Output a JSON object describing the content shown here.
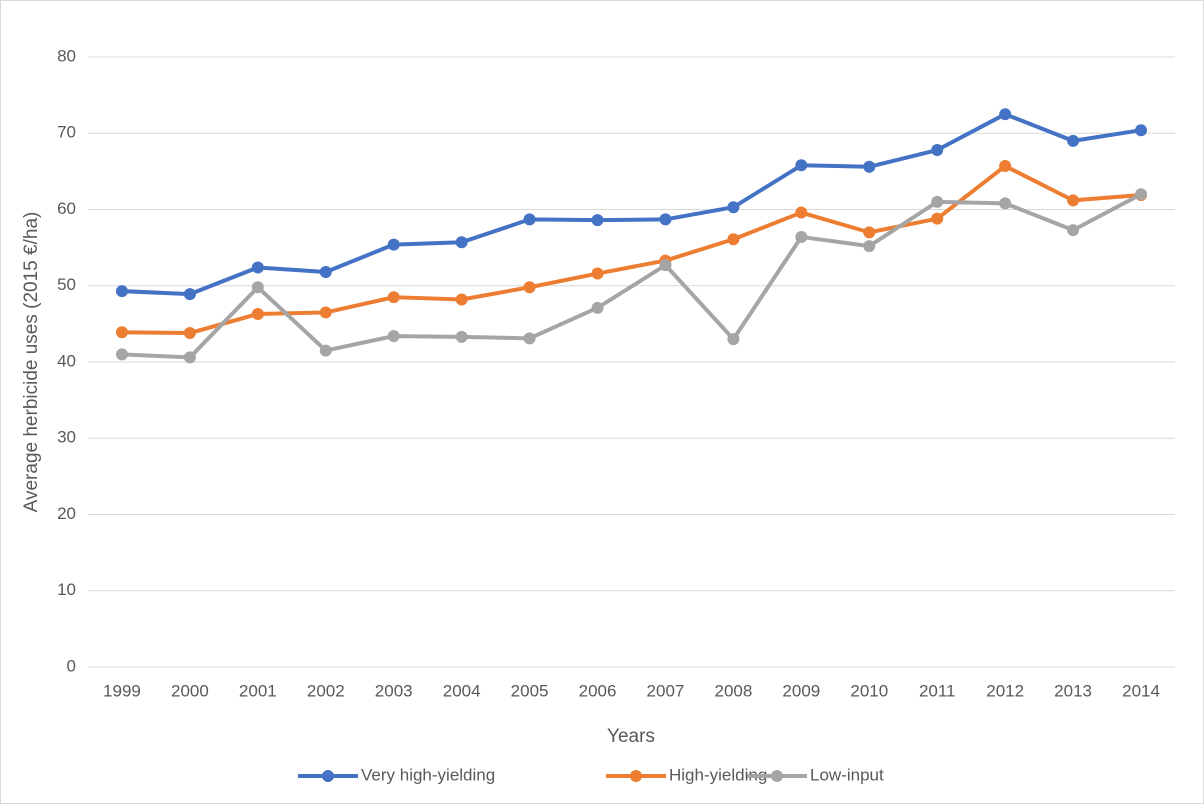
{
  "chart_data": {
    "type": "line",
    "x_label": "Years",
    "y_label": "Average herbicide uses (2015 €/ha)",
    "categories": [
      "1999",
      "2000",
      "2001",
      "2002",
      "2003",
      "2004",
      "2005",
      "2006",
      "2007",
      "2008",
      "2009",
      "2010",
      "2011",
      "2012",
      "2013",
      "2014"
    ],
    "series": [
      {
        "name": "Very high-yielding",
        "color": "#4472c4",
        "values": [
          49.3,
          48.9,
          52.4,
          51.8,
          55.4,
          55.7,
          58.7,
          58.6,
          58.7,
          60.3,
          65.8,
          65.6,
          67.8,
          72.5,
          69.0,
          70.4
        ]
      },
      {
        "name": "High-yielding",
        "color": "#ed7d31",
        "values": [
          43.9,
          43.8,
          46.3,
          46.5,
          48.5,
          48.2,
          49.8,
          51.6,
          53.3,
          56.1,
          59.6,
          57.0,
          58.8,
          65.7,
          61.2,
          61.9
        ]
      },
      {
        "name": "Low-input",
        "color": "#a5a5a5",
        "values": [
          41.0,
          40.6,
          49.8,
          41.5,
          43.4,
          43.3,
          43.1,
          47.1,
          52.7,
          43.0,
          56.4,
          55.2,
          61.0,
          60.8,
          57.3,
          62.0
        ]
      }
    ],
    "ylim": [
      0,
      80
    ],
    "yticks": [
      0,
      10,
      20,
      30,
      40,
      50,
      60,
      70,
      80
    ],
    "grid": true,
    "legend": "bottom"
  }
}
